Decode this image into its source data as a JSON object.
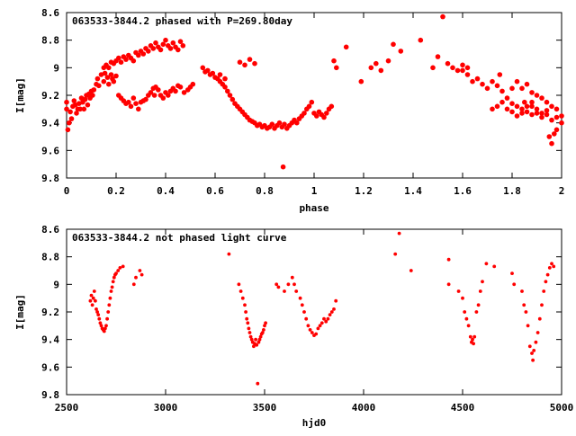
{
  "chart_data": [
    {
      "type": "scatter",
      "title": "063533-3844.2 phased with P=269.80day",
      "xlabel": "phase",
      "ylabel": "I[mag]",
      "xlim": [
        0,
        2
      ],
      "ylim": [
        9.8,
        8.6
      ],
      "y_inverted": true,
      "grid": false,
      "color": "#ff0000",
      "marker": "filled-circle",
      "x_ticks": [
        "0",
        "0.2",
        "0.4",
        "0.6",
        "0.8",
        "1",
        "1.2",
        "1.4",
        "1.6",
        "1.8",
        "2"
      ],
      "y_ticks": [
        "8.6",
        "8.8",
        "9",
        "9.2",
        "9.4",
        "9.6",
        "9.8"
      ],
      "points": [
        [
          0.0,
          9.25
        ],
        [
          0.0,
          9.3
        ],
        [
          0.005,
          9.45
        ],
        [
          0.01,
          9.4
        ],
        [
          0.015,
          9.32
        ],
        [
          0.02,
          9.37
        ],
        [
          0.025,
          9.28
        ],
        [
          0.03,
          9.24
        ],
        [
          0.035,
          9.27
        ],
        [
          0.04,
          9.33
        ],
        [
          0.045,
          9.3
        ],
        [
          0.05,
          9.26
        ],
        [
          0.055,
          9.3
        ],
        [
          0.06,
          9.22
        ],
        [
          0.065,
          9.25
        ],
        [
          0.07,
          9.3
        ],
        [
          0.075,
          9.23
        ],
        [
          0.08,
          9.2
        ],
        [
          0.085,
          9.27
        ],
        [
          0.09,
          9.19
        ],
        [
          0.095,
          9.22
        ],
        [
          0.1,
          9.17
        ],
        [
          0.105,
          9.2
        ],
        [
          0.11,
          9.16
        ],
        [
          0.12,
          9.12
        ],
        [
          0.125,
          9.08
        ],
        [
          0.13,
          9.13
        ],
        [
          0.14,
          9.05
        ],
        [
          0.15,
          9.1
        ],
        [
          0.155,
          9.04
        ],
        [
          0.165,
          9.07
        ],
        [
          0.17,
          9.12
        ],
        [
          0.18,
          9.05
        ],
        [
          0.185,
          9.08
        ],
        [
          0.19,
          9.1
        ],
        [
          0.2,
          9.06
        ],
        [
          0.21,
          9.2
        ],
        [
          0.22,
          9.22
        ],
        [
          0.23,
          9.24
        ],
        [
          0.24,
          9.26
        ],
        [
          0.25,
          9.25
        ],
        [
          0.26,
          9.28
        ],
        [
          0.27,
          9.22
        ],
        [
          0.28,
          9.26
        ],
        [
          0.29,
          9.3
        ],
        [
          0.3,
          9.25
        ],
        [
          0.31,
          9.24
        ],
        [
          0.32,
          9.23
        ],
        [
          0.33,
          9.2
        ],
        [
          0.34,
          9.18
        ],
        [
          0.35,
          9.15
        ],
        [
          0.355,
          9.2
        ],
        [
          0.36,
          9.14
        ],
        [
          0.37,
          9.16
        ],
        [
          0.38,
          9.2
        ],
        [
          0.39,
          9.22
        ],
        [
          0.4,
          9.18
        ],
        [
          0.41,
          9.2
        ],
        [
          0.42,
          9.17
        ],
        [
          0.43,
          9.15
        ],
        [
          0.44,
          9.17
        ],
        [
          0.45,
          9.13
        ],
        [
          0.46,
          9.14
        ],
        [
          0.475,
          9.18
        ],
        [
          0.49,
          9.16
        ],
        [
          0.5,
          9.14
        ],
        [
          0.51,
          9.12
        ],
        [
          0.2,
          8.95
        ],
        [
          0.21,
          8.93
        ],
        [
          0.22,
          8.96
        ],
        [
          0.23,
          8.92
        ],
        [
          0.24,
          8.94
        ],
        [
          0.25,
          8.91
        ],
        [
          0.26,
          8.93
        ],
        [
          0.27,
          8.95
        ],
        [
          0.28,
          8.89
        ],
        [
          0.29,
          8.91
        ],
        [
          0.3,
          8.88
        ],
        [
          0.31,
          8.9
        ],
        [
          0.32,
          8.86
        ],
        [
          0.33,
          8.88
        ],
        [
          0.34,
          8.84
        ],
        [
          0.35,
          8.86
        ],
        [
          0.36,
          8.82
        ],
        [
          0.37,
          8.85
        ],
        [
          0.38,
          8.87
        ],
        [
          0.39,
          8.83
        ],
        [
          0.4,
          8.8
        ],
        [
          0.41,
          8.84
        ],
        [
          0.42,
          8.86
        ],
        [
          0.43,
          8.82
        ],
        [
          0.44,
          8.85
        ],
        [
          0.45,
          8.87
        ],
        [
          0.46,
          8.81
        ],
        [
          0.47,
          8.84
        ],
        [
          0.15,
          9.0
        ],
        [
          0.16,
          8.98
        ],
        [
          0.17,
          9.0
        ],
        [
          0.18,
          8.96
        ],
        [
          0.19,
          8.97
        ],
        [
          0.55,
          9.0
        ],
        [
          0.56,
          9.03
        ],
        [
          0.57,
          9.02
        ],
        [
          0.58,
          9.05
        ],
        [
          0.59,
          9.04
        ],
        [
          0.6,
          9.07
        ],
        [
          0.61,
          9.08
        ],
        [
          0.62,
          9.1
        ],
        [
          0.63,
          9.12
        ],
        [
          0.64,
          9.14
        ],
        [
          0.65,
          9.17
        ],
        [
          0.66,
          9.2
        ],
        [
          0.67,
          9.23
        ],
        [
          0.68,
          9.26
        ],
        [
          0.69,
          9.28
        ],
        [
          0.7,
          9.3
        ],
        [
          0.71,
          9.32
        ],
        [
          0.72,
          9.34
        ],
        [
          0.73,
          9.36
        ],
        [
          0.74,
          9.38
        ],
        [
          0.75,
          9.39
        ],
        [
          0.76,
          9.4
        ],
        [
          0.77,
          9.42
        ],
        [
          0.78,
          9.41
        ],
        [
          0.79,
          9.43
        ],
        [
          0.8,
          9.42
        ],
        [
          0.81,
          9.44
        ],
        [
          0.82,
          9.43
        ],
        [
          0.83,
          9.41
        ],
        [
          0.84,
          9.44
        ],
        [
          0.85,
          9.42
        ],
        [
          0.86,
          9.4
        ],
        [
          0.87,
          9.43
        ],
        [
          0.875,
          9.72
        ],
        [
          0.88,
          9.41
        ],
        [
          0.89,
          9.44
        ],
        [
          0.9,
          9.42
        ],
        [
          0.91,
          9.4
        ],
        [
          0.92,
          9.38
        ],
        [
          0.93,
          9.4
        ],
        [
          0.94,
          9.37
        ],
        [
          0.95,
          9.35
        ],
        [
          0.96,
          9.33
        ],
        [
          0.97,
          9.3
        ],
        [
          0.98,
          9.28
        ],
        [
          0.99,
          9.25
        ],
        [
          1.0,
          9.33
        ],
        [
          1.01,
          9.35
        ],
        [
          1.02,
          9.32
        ],
        [
          1.03,
          9.34
        ],
        [
          1.04,
          9.36
        ],
        [
          1.05,
          9.33
        ],
        [
          1.06,
          9.3
        ],
        [
          1.07,
          9.28
        ],
        [
          0.7,
          8.96
        ],
        [
          0.72,
          8.98
        ],
        [
          0.74,
          8.94
        ],
        [
          0.76,
          8.97
        ],
        [
          0.62,
          9.05
        ],
        [
          0.64,
          9.08
        ],
        [
          1.08,
          8.95
        ],
        [
          1.09,
          9.0
        ],
        [
          1.13,
          8.85
        ],
        [
          1.19,
          9.1
        ],
        [
          1.23,
          9.0
        ],
        [
          1.25,
          8.97
        ],
        [
          1.27,
          9.02
        ],
        [
          1.3,
          8.95
        ],
        [
          1.32,
          8.83
        ],
        [
          1.35,
          8.88
        ],
        [
          1.43,
          8.8
        ],
        [
          1.48,
          9.0
        ],
        [
          1.5,
          8.92
        ],
        [
          1.52,
          8.63
        ],
        [
          1.54,
          8.97
        ],
        [
          1.56,
          9.0
        ],
        [
          1.58,
          9.02
        ],
        [
          1.6,
          8.98
        ],
        [
          1.62,
          9.05
        ],
        [
          1.64,
          9.1
        ],
        [
          1.66,
          9.08
        ],
        [
          1.68,
          9.12
        ],
        [
          1.7,
          9.15
        ],
        [
          1.72,
          9.1
        ],
        [
          1.74,
          9.13
        ],
        [
          1.76,
          9.17
        ],
        [
          1.78,
          9.22
        ],
        [
          1.8,
          9.26
        ],
        [
          1.82,
          9.28
        ],
        [
          1.84,
          9.3
        ],
        [
          1.86,
          9.32
        ],
        [
          1.88,
          9.34
        ],
        [
          1.9,
          9.33
        ],
        [
          1.92,
          9.36
        ],
        [
          1.94,
          9.34
        ],
        [
          1.96,
          9.38
        ],
        [
          1.98,
          9.36
        ],
        [
          2.0,
          9.35
        ],
        [
          1.72,
          9.3
        ],
        [
          1.74,
          9.28
        ],
        [
          1.76,
          9.25
        ],
        [
          1.78,
          9.3
        ],
        [
          1.8,
          9.32
        ],
        [
          1.82,
          9.35
        ],
        [
          1.84,
          9.33
        ],
        [
          1.86,
          9.28
        ],
        [
          1.88,
          9.25
        ],
        [
          1.9,
          9.3
        ],
        [
          1.92,
          9.33
        ],
        [
          1.94,
          9.31
        ],
        [
          1.96,
          9.28
        ],
        [
          1.98,
          9.3
        ],
        [
          1.95,
          9.5
        ],
        [
          1.96,
          9.55
        ],
        [
          1.97,
          9.48
        ],
        [
          1.82,
          9.1
        ],
        [
          1.84,
          9.15
        ],
        [
          1.86,
          9.12
        ],
        [
          1.88,
          9.18
        ],
        [
          1.6,
          9.02
        ],
        [
          1.62,
          9.0
        ],
        [
          1.8,
          9.15
        ],
        [
          1.75,
          9.05
        ],
        [
          1.9,
          9.2
        ],
        [
          1.92,
          9.22
        ],
        [
          1.94,
          9.25
        ],
        [
          1.98,
          9.45
        ],
        [
          2.0,
          9.4
        ],
        [
          1.85,
          9.25
        ],
        [
          1.88,
          9.28
        ]
      ]
    },
    {
      "type": "scatter",
      "title": "063533-3844.2 not phased light curve",
      "xlabel": "hjd0",
      "ylabel": "I[mag]",
      "xlim": [
        2500,
        5000
      ],
      "ylim": [
        9.8,
        8.6
      ],
      "y_inverted": true,
      "grid": false,
      "color": "#ff0000",
      "marker": "filled-circle",
      "x_ticks": [
        "2500",
        "3000",
        "3500",
        "4000",
        "4500",
        "5000"
      ],
      "y_ticks": [
        "8.6",
        "8.8",
        "9",
        "9.2",
        "9.4",
        "9.6",
        "9.8"
      ],
      "points": [
        [
          2620,
          9.12
        ],
        [
          2625,
          9.08
        ],
        [
          2630,
          9.15
        ],
        [
          2635,
          9.1
        ],
        [
          2640,
          9.05
        ],
        [
          2645,
          9.12
        ],
        [
          2650,
          9.18
        ],
        [
          2655,
          9.2
        ],
        [
          2660,
          9.22
        ],
        [
          2665,
          9.25
        ],
        [
          2670,
          9.28
        ],
        [
          2675,
          9.3
        ],
        [
          2680,
          9.32
        ],
        [
          2685,
          9.33
        ],
        [
          2690,
          9.34
        ],
        [
          2695,
          9.32
        ],
        [
          2700,
          9.3
        ],
        [
          2705,
          9.25
        ],
        [
          2710,
          9.2
        ],
        [
          2715,
          9.15
        ],
        [
          2720,
          9.1
        ],
        [
          2725,
          9.05
        ],
        [
          2730,
          9.02
        ],
        [
          2735,
          8.98
        ],
        [
          2740,
          8.95
        ],
        [
          2745,
          8.93
        ],
        [
          2750,
          8.92
        ],
        [
          2760,
          8.9
        ],
        [
          2770,
          8.88
        ],
        [
          2785,
          8.87
        ],
        [
          2840,
          9.0
        ],
        [
          2850,
          8.95
        ],
        [
          2870,
          8.9
        ],
        [
          2880,
          8.93
        ],
        [
          3320,
          8.78
        ],
        [
          3370,
          9.0
        ],
        [
          3380,
          9.05
        ],
        [
          3390,
          9.1
        ],
        [
          3400,
          9.15
        ],
        [
          3405,
          9.2
        ],
        [
          3410,
          9.25
        ],
        [
          3415,
          9.28
        ],
        [
          3420,
          9.32
        ],
        [
          3425,
          9.35
        ],
        [
          3430,
          9.38
        ],
        [
          3435,
          9.4
        ],
        [
          3440,
          9.42
        ],
        [
          3445,
          9.45
        ],
        [
          3450,
          9.43
        ],
        [
          3455,
          9.4
        ],
        [
          3460,
          9.44
        ],
        [
          3465,
          9.72
        ],
        [
          3470,
          9.42
        ],
        [
          3475,
          9.4
        ],
        [
          3480,
          9.38
        ],
        [
          3485,
          9.36
        ],
        [
          3490,
          9.35
        ],
        [
          3495,
          9.33
        ],
        [
          3500,
          9.3
        ],
        [
          3505,
          9.28
        ],
        [
          3560,
          9.0
        ],
        [
          3570,
          9.02
        ],
        [
          3600,
          9.05
        ],
        [
          3620,
          9.0
        ],
        [
          3640,
          8.95
        ],
        [
          3650,
          9.0
        ],
        [
          3660,
          9.05
        ],
        [
          3680,
          9.1
        ],
        [
          3690,
          9.15
        ],
        [
          3700,
          9.2
        ],
        [
          3710,
          9.25
        ],
        [
          3720,
          9.3
        ],
        [
          3730,
          9.33
        ],
        [
          3740,
          9.35
        ],
        [
          3750,
          9.37
        ],
        [
          3760,
          9.36
        ],
        [
          3770,
          9.32
        ],
        [
          3780,
          9.3
        ],
        [
          3790,
          9.28
        ],
        [
          3800,
          9.25
        ],
        [
          3810,
          9.27
        ],
        [
          3820,
          9.25
        ],
        [
          3830,
          9.22
        ],
        [
          3840,
          9.2
        ],
        [
          3850,
          9.18
        ],
        [
          3860,
          9.12
        ],
        [
          4160,
          8.78
        ],
        [
          4180,
          8.63
        ],
        [
          4240,
          8.9
        ],
        [
          4430,
          8.82
        ],
        [
          4430,
          9.0
        ],
        [
          4480,
          9.05
        ],
        [
          4500,
          9.1
        ],
        [
          4510,
          9.2
        ],
        [
          4520,
          9.25
        ],
        [
          4530,
          9.3
        ],
        [
          4540,
          9.38
        ],
        [
          4545,
          9.42
        ],
        [
          4550,
          9.4
        ],
        [
          4555,
          9.43
        ],
        [
          4560,
          9.38
        ],
        [
          4570,
          9.2
        ],
        [
          4580,
          9.15
        ],
        [
          4590,
          9.05
        ],
        [
          4600,
          8.98
        ],
        [
          4620,
          8.85
        ],
        [
          4660,
          8.87
        ],
        [
          4750,
          8.92
        ],
        [
          4760,
          9.0
        ],
        [
          4800,
          9.05
        ],
        [
          4810,
          9.15
        ],
        [
          4820,
          9.2
        ],
        [
          4830,
          9.3
        ],
        [
          4840,
          9.45
        ],
        [
          4850,
          9.5
        ],
        [
          4855,
          9.55
        ],
        [
          4860,
          9.48
        ],
        [
          4870,
          9.42
        ],
        [
          4880,
          9.35
        ],
        [
          4890,
          9.25
        ],
        [
          4900,
          9.15
        ],
        [
          4910,
          9.05
        ],
        [
          4920,
          8.98
        ],
        [
          4930,
          8.93
        ],
        [
          4940,
          8.88
        ],
        [
          4950,
          8.85
        ],
        [
          4960,
          8.87
        ]
      ]
    }
  ]
}
